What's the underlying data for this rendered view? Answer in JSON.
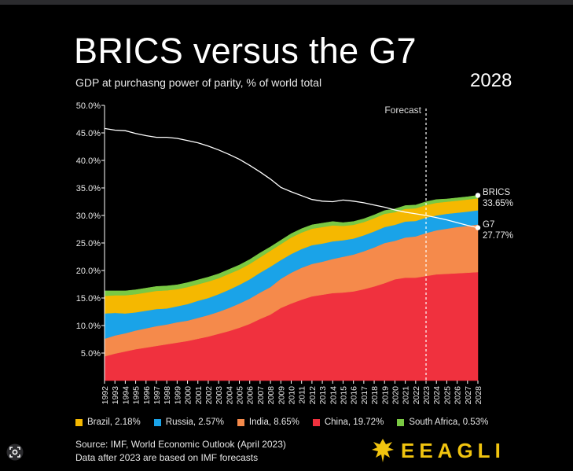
{
  "title": "BRICS versus the G7",
  "subtitle": "GDP at purchasng power of parity, % of world total",
  "year_label": "2028",
  "forecast_label": "Forecast",
  "end_labels": {
    "brics_name": "BRICS",
    "brics_value": "33.65%",
    "g7_name": "G7",
    "g7_value": "27.77%"
  },
  "legend": [
    {
      "label": "Brazil, 2.18%",
      "color": "#f5b800"
    },
    {
      "label": "Russia, 2.57%",
      "color": "#1aa3e8"
    },
    {
      "label": "India, 8.65%",
      "color": "#f58a4b"
    },
    {
      "label": "China, 19.72%",
      "color": "#f0313e"
    },
    {
      "label": "South Africa, 0.53%",
      "color": "#7ac943"
    }
  ],
  "source_lines": [
    "Source: IMF, World Economic Outlook (April 2023)",
    "Data after 2023 are based on IMF forecasts"
  ],
  "logo_text": "EEAGLI",
  "icons": {
    "logo": "eagle-icon",
    "lens": "image-search-icon"
  },
  "chart_data": {
    "type": "area",
    "stacked": true,
    "title": "BRICS versus the G7",
    "subtitle": "GDP at purchasng power of parity, % of world total",
    "x": [
      1992,
      1993,
      1994,
      1995,
      1996,
      1997,
      1998,
      1999,
      2000,
      2001,
      2002,
      2003,
      2004,
      2005,
      2006,
      2007,
      2008,
      2009,
      2010,
      2011,
      2012,
      2013,
      2014,
      2015,
      2016,
      2017,
      2018,
      2019,
      2020,
      2021,
      2022,
      2023,
      2024,
      2025,
      2026,
      2027,
      2028
    ],
    "ylim": [
      0,
      50
    ],
    "yticks": [
      "5.0%",
      "10.0%",
      "15.0%",
      "20.0%",
      "25.0%",
      "30.0%",
      "35.0%",
      "40.0%",
      "45.0%",
      "50.0%"
    ],
    "ytick_values": [
      5,
      10,
      15,
      20,
      25,
      30,
      35,
      40,
      45,
      50
    ],
    "forecast_start": 2023,
    "grid": false,
    "series": [
      {
        "name": "China",
        "color": "#f0313e",
        "values": [
          4.4,
          4.9,
          5.3,
          5.7,
          6.0,
          6.3,
          6.6,
          6.9,
          7.2,
          7.6,
          8.0,
          8.5,
          9.0,
          9.6,
          10.3,
          11.2,
          12.0,
          13.2,
          14.0,
          14.7,
          15.3,
          15.6,
          15.9,
          16.0,
          16.2,
          16.6,
          17.1,
          17.7,
          18.4,
          18.7,
          18.7,
          19.0,
          19.3,
          19.4,
          19.5,
          19.6,
          19.72
        ]
      },
      {
        "name": "India",
        "color": "#f58a4b",
        "values": [
          3.2,
          3.3,
          3.3,
          3.4,
          3.5,
          3.6,
          3.6,
          3.7,
          3.7,
          3.8,
          3.9,
          4.0,
          4.2,
          4.4,
          4.6,
          4.8,
          5.0,
          5.3,
          5.6,
          5.8,
          5.9,
          6.0,
          6.2,
          6.5,
          6.7,
          6.9,
          7.1,
          7.3,
          7.0,
          7.3,
          7.5,
          7.8,
          8.0,
          8.2,
          8.4,
          8.5,
          8.65
        ]
      },
      {
        "name": "Russia",
        "color": "#1aa3e8",
        "values": [
          4.6,
          4.1,
          3.6,
          3.3,
          3.2,
          3.1,
          2.9,
          2.9,
          3.0,
          3.1,
          3.1,
          3.2,
          3.3,
          3.4,
          3.5,
          3.6,
          3.7,
          3.4,
          3.4,
          3.4,
          3.4,
          3.3,
          3.2,
          3.0,
          2.9,
          2.9,
          2.9,
          2.9,
          2.9,
          2.9,
          2.8,
          2.8,
          2.7,
          2.7,
          2.6,
          2.6,
          2.57
        ]
      },
      {
        "name": "Brazil",
        "color": "#f5b800",
        "values": [
          3.2,
          3.2,
          3.3,
          3.3,
          3.3,
          3.3,
          3.3,
          3.1,
          3.1,
          3.0,
          3.0,
          2.9,
          2.9,
          2.8,
          2.8,
          2.8,
          2.9,
          2.9,
          3.0,
          3.0,
          3.0,
          3.0,
          2.9,
          2.6,
          2.5,
          2.4,
          2.4,
          2.4,
          2.3,
          2.3,
          2.3,
          2.3,
          2.3,
          2.2,
          2.2,
          2.2,
          2.18
        ]
      },
      {
        "name": "South Africa",
        "color": "#7ac943",
        "values": [
          0.9,
          0.8,
          0.8,
          0.8,
          0.8,
          0.8,
          0.8,
          0.8,
          0.8,
          0.8,
          0.8,
          0.8,
          0.8,
          0.8,
          0.8,
          0.8,
          0.7,
          0.7,
          0.7,
          0.7,
          0.7,
          0.7,
          0.7,
          0.6,
          0.6,
          0.6,
          0.6,
          0.6,
          0.6,
          0.6,
          0.6,
          0.6,
          0.6,
          0.5,
          0.5,
          0.5,
          0.53
        ]
      }
    ],
    "line_series": {
      "name": "G7",
      "color": "#ffffff",
      "values": [
        45.8,
        45.5,
        45.4,
        44.9,
        44.5,
        44.2,
        44.2,
        44.0,
        43.6,
        43.2,
        42.6,
        41.9,
        41.1,
        40.2,
        39.1,
        37.9,
        36.6,
        35.1,
        34.3,
        33.6,
        32.9,
        32.6,
        32.5,
        32.8,
        32.6,
        32.3,
        31.9,
        31.5,
        31.0,
        30.6,
        30.3,
        30.0,
        29.6,
        29.2,
        28.7,
        28.2,
        27.77
      ]
    }
  }
}
